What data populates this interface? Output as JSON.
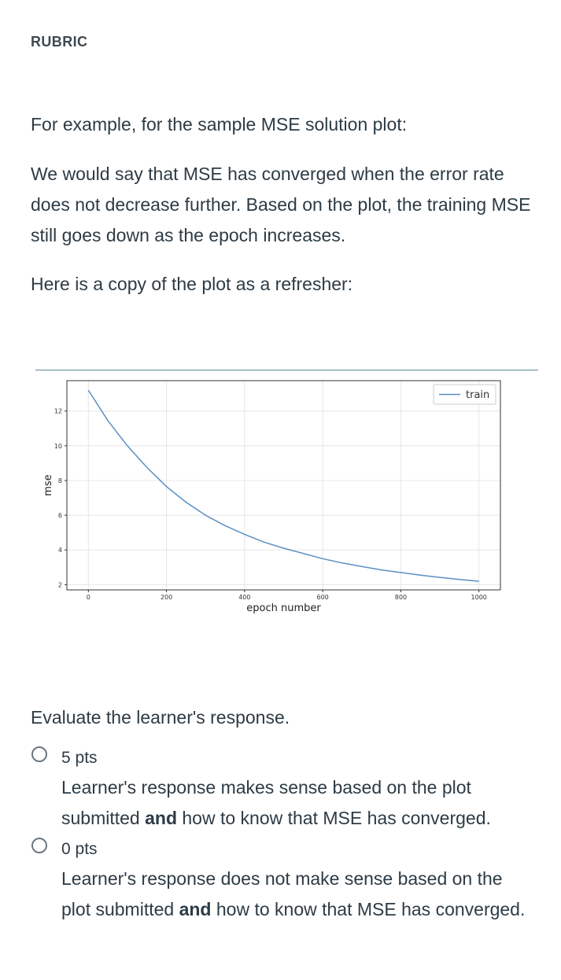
{
  "rubric": {
    "header": "RUBRIC",
    "intro": "For example, for the sample MSE solution plot:",
    "explanation": "We would say that MSE has converged when the error rate does not decrease further. Based on the plot, the training MSE still goes down as the epoch increases.",
    "refresher": "Here is a copy of the plot as a refresher:",
    "evaluate": "Evaluate the learner's response.",
    "options": [
      {
        "points": "5 pts",
        "desc_before": "Learner's response makes sense based on the plot submitted ",
        "desc_bold": "and",
        "desc_after": " how to know that MSE has converged."
      },
      {
        "points": "0 pts",
        "desc_before": "Learner's response does not make sense based on the plot submitted ",
        "desc_bold": "and",
        "desc_after": " how to know that MSE has converged."
      }
    ]
  },
  "chart_data": {
    "type": "line",
    "xlabel": "epoch number",
    "ylabel": "mse",
    "xlim": [
      -55,
      1055
    ],
    "ylim": [
      1.7,
      13.75
    ],
    "xticks": [
      0,
      200,
      400,
      600,
      800,
      1000
    ],
    "yticks": [
      2,
      4,
      6,
      8,
      10,
      12
    ],
    "grid": true,
    "legend_position": "top-right",
    "series": [
      {
        "name": "train",
        "color": "#5a8fc2",
        "x": [
          0,
          50,
          100,
          150,
          200,
          250,
          300,
          350,
          400,
          450,
          500,
          550,
          600,
          650,
          700,
          750,
          800,
          850,
          900,
          950,
          1000
        ],
        "y": [
          13.2,
          11.45,
          10.0,
          8.75,
          7.65,
          6.75,
          6.0,
          5.4,
          4.9,
          4.45,
          4.1,
          3.8,
          3.5,
          3.25,
          3.05,
          2.85,
          2.7,
          2.55,
          2.42,
          2.3,
          2.2
        ]
      }
    ]
  }
}
